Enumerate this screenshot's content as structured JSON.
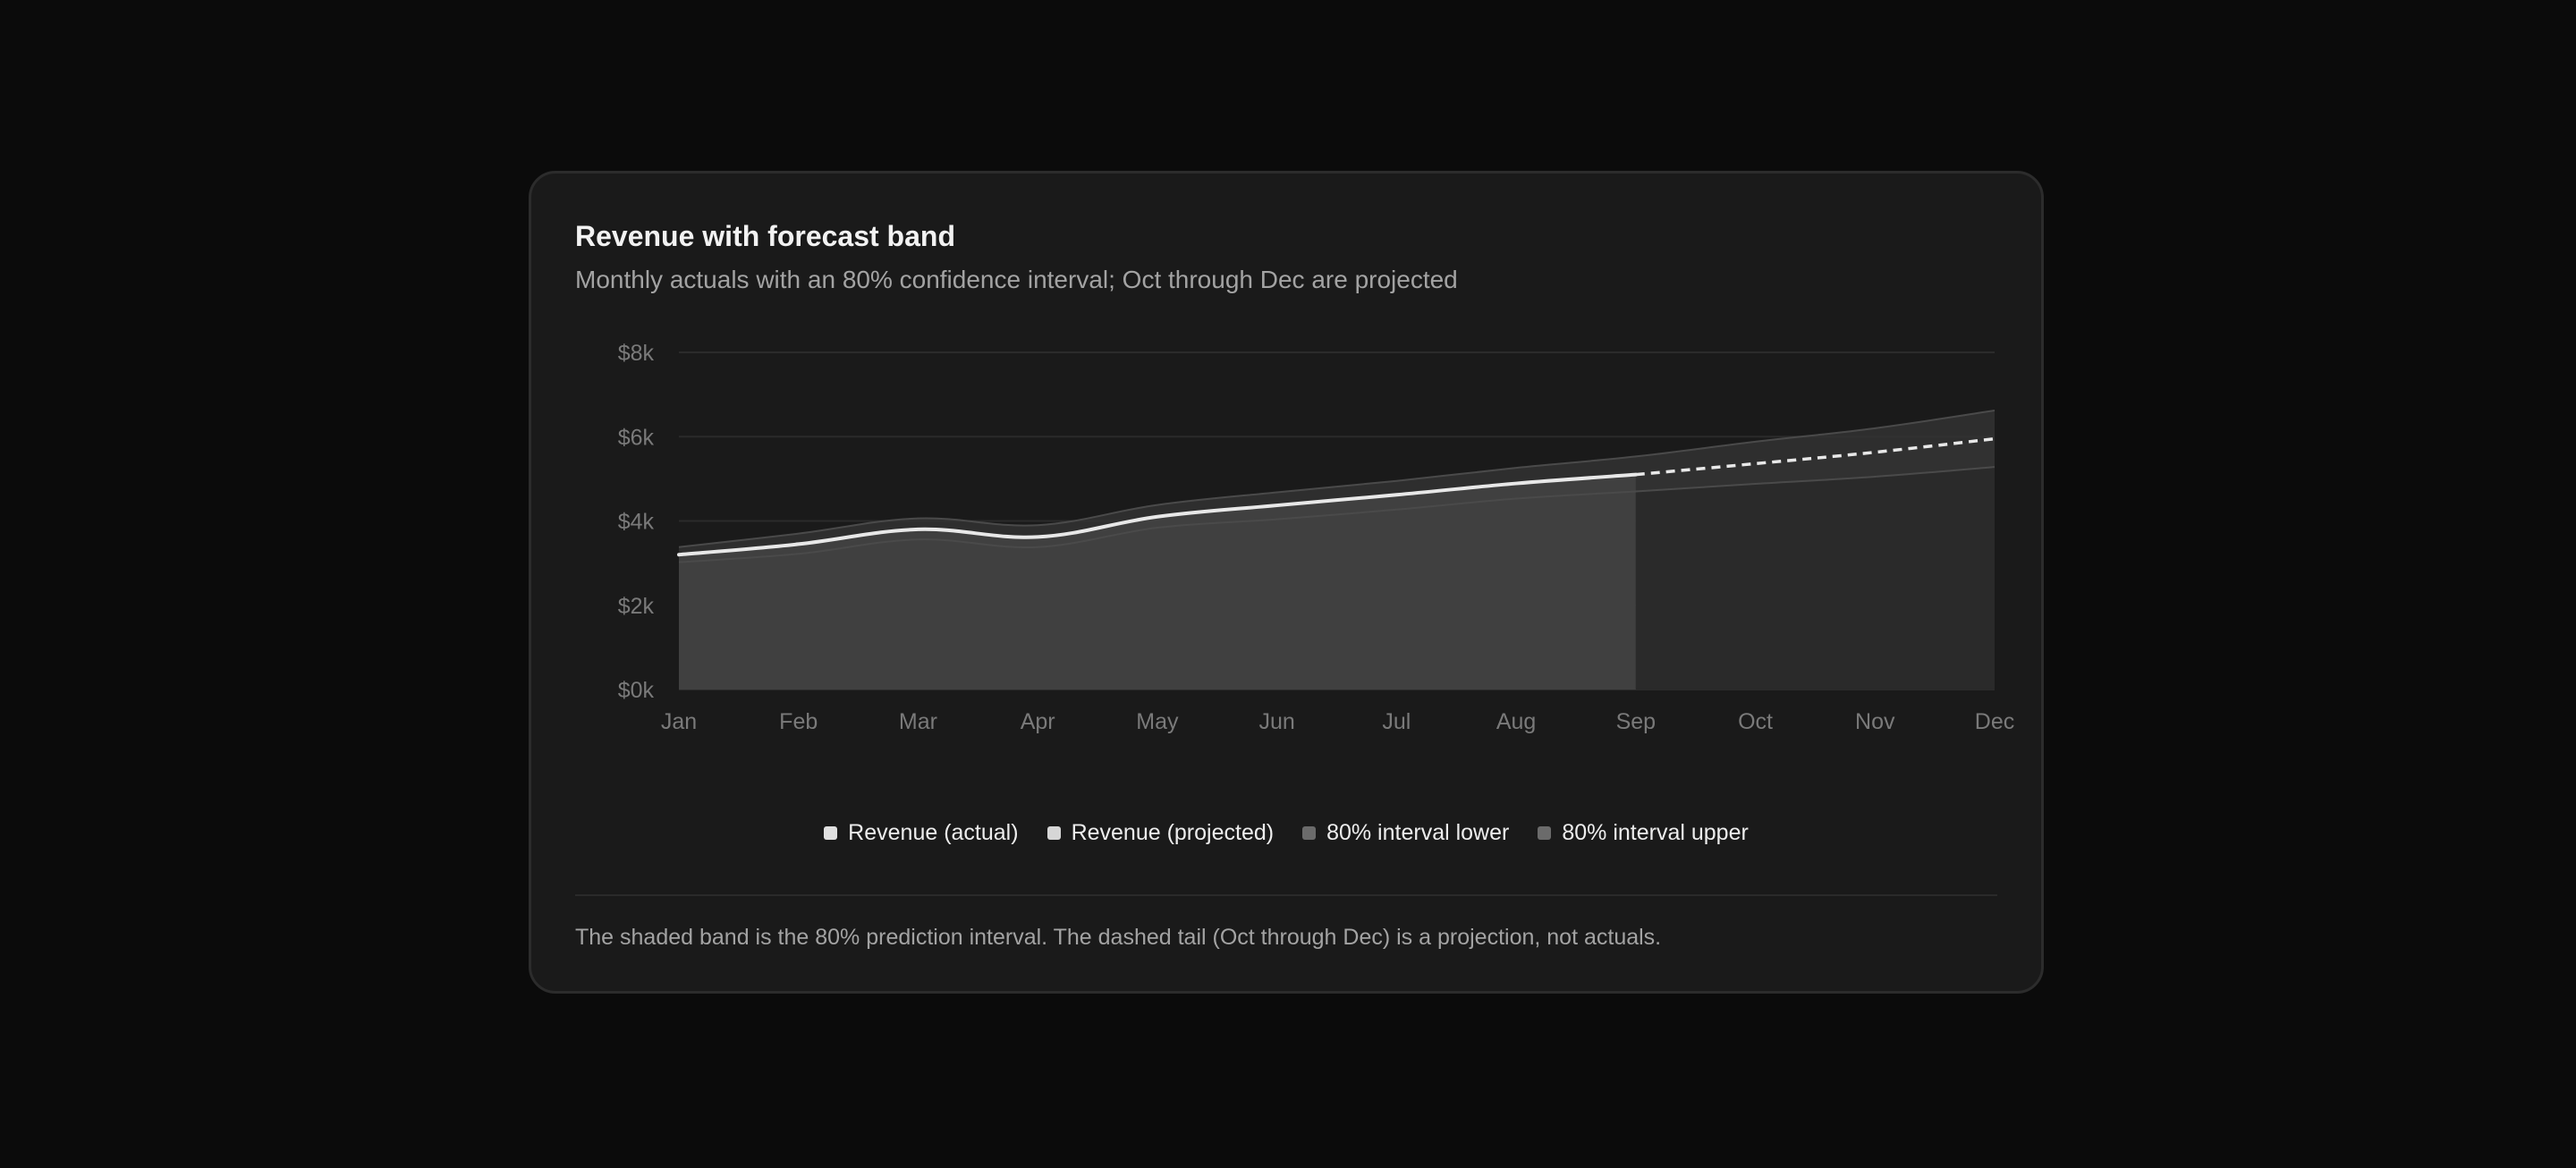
{
  "card": {
    "title": "Revenue with forecast band",
    "subtitle": "Monthly actuals with an 80% confidence interval; Oct through Dec are projected",
    "footnote": "The shaded band is the 80% prediction interval. The dashed tail (Oct through Dec) is a projection, not actuals."
  },
  "colors": {
    "background": "#0b0b0b",
    "card": "#1a1a1a",
    "line": "#e8e8e8",
    "actual_fill": "#404040",
    "projected_fill": "#2a2a2a",
    "band": "#333333",
    "grid": "#2b2b2b",
    "tick_text": "#7a7a7a"
  },
  "chart_data": {
    "type": "area",
    "x": [
      "Jan",
      "Feb",
      "Mar",
      "Apr",
      "May",
      "Jun",
      "Jul",
      "Aug",
      "Sep",
      "Oct",
      "Nov",
      "Dec"
    ],
    "ylim": [
      0,
      8000
    ],
    "yticks": [
      0,
      2000,
      4000,
      6000,
      8000
    ],
    "ytick_labels": [
      "$0k",
      "$2k",
      "$4k",
      "$6k",
      "$8k"
    ],
    "grid": true,
    "legend_position": "bottom-center",
    "projection_starts_at": "Sep",
    "series": [
      {
        "name": "Revenue (actual)",
        "values": [
          3200,
          3450,
          3800,
          3620,
          4100,
          4370,
          4620,
          4890,
          5100,
          null,
          null,
          null
        ],
        "color": "#e8e8e8",
        "style": "solid"
      },
      {
        "name": "Revenue (projected)",
        "values": [
          null,
          null,
          null,
          null,
          null,
          null,
          null,
          null,
          5100,
          5360,
          5630,
          5950
        ],
        "color": "#e8e8e8",
        "style": "dashed"
      },
      {
        "name": "80% interval lower",
        "values": [
          3020,
          3220,
          3560,
          3380,
          3840,
          4040,
          4270,
          4530,
          4700,
          4880,
          5050,
          5280
        ],
        "color": "#6b6b6b"
      },
      {
        "name": "80% interval upper",
        "values": [
          3380,
          3700,
          4060,
          3900,
          4380,
          4680,
          4950,
          5260,
          5530,
          5880,
          6200,
          6620
        ],
        "color": "#6b6b6b"
      }
    ]
  }
}
